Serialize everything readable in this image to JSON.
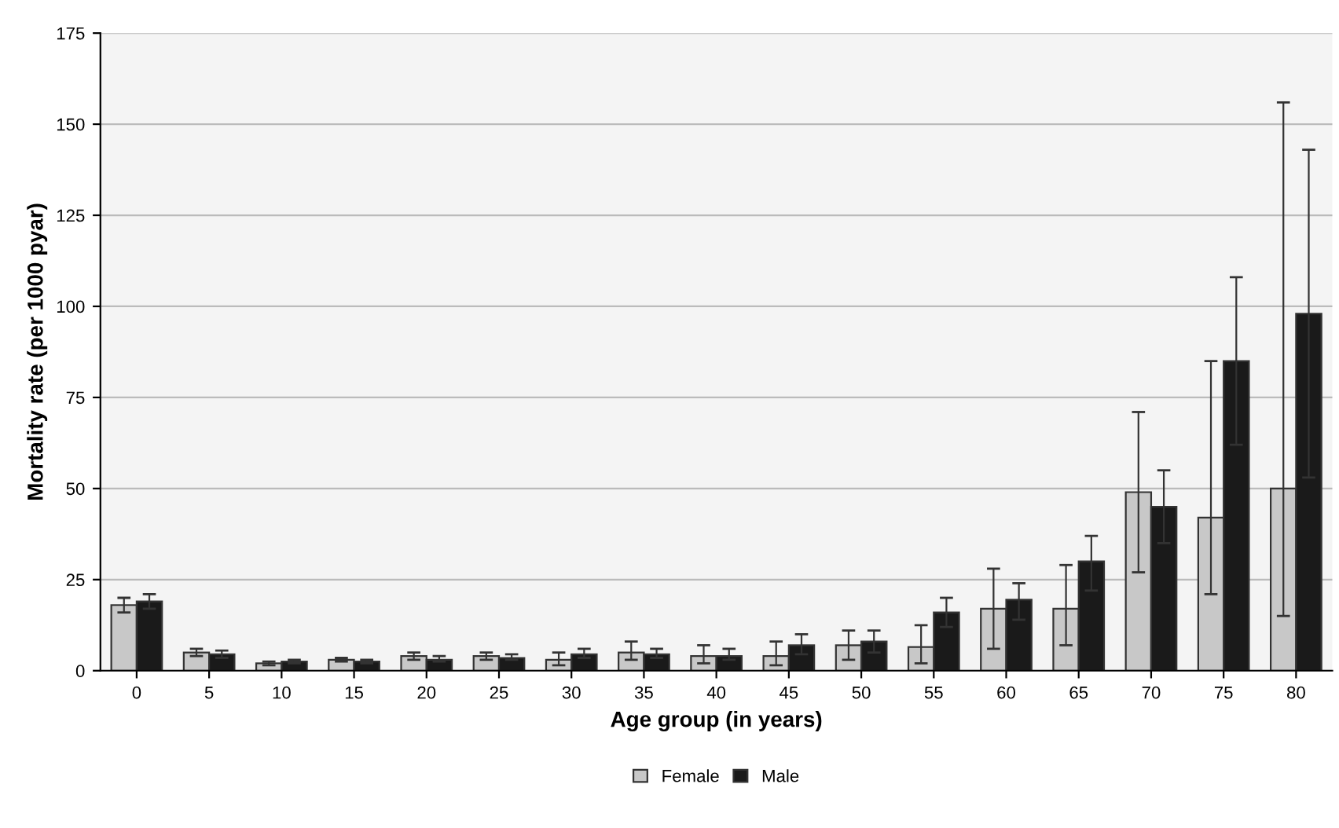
{
  "chart_data": {
    "type": "bar",
    "xlabel": "Age group (in years)",
    "ylabel": "Mortality rate (per 1000 pyar)",
    "categories": [
      "0",
      "5",
      "10",
      "15",
      "20",
      "25",
      "30",
      "35",
      "40",
      "45",
      "50",
      "55",
      "60",
      "65",
      "70",
      "75",
      "80"
    ],
    "series": [
      {
        "name": "Female",
        "color": "#c8c8c8",
        "values": [
          18,
          5,
          2,
          3,
          4,
          4,
          3,
          5,
          4,
          4,
          7,
          6.5,
          17,
          17,
          49,
          42,
          50
        ],
        "errors": [
          [
            16,
            20
          ],
          [
            4,
            6
          ],
          [
            1.5,
            2.5
          ],
          [
            2.5,
            3.5
          ],
          [
            3,
            5
          ],
          [
            3,
            5
          ],
          [
            1.5,
            5
          ],
          [
            3,
            8
          ],
          [
            2,
            7
          ],
          [
            1.5,
            8
          ],
          [
            3,
            11
          ],
          [
            2,
            12.5
          ],
          [
            6,
            28
          ],
          [
            7,
            29
          ],
          [
            27,
            71
          ],
          [
            21,
            85
          ],
          [
            15,
            156
          ]
        ]
      },
      {
        "name": "Male",
        "color": "#1a1a1a",
        "values": [
          19,
          4.5,
          2.5,
          2.5,
          3,
          3.5,
          4.5,
          4.5,
          4,
          7,
          8,
          16,
          19.5,
          30,
          45,
          85,
          98
        ],
        "errors": [
          [
            17,
            21
          ],
          [
            3.5,
            5.5
          ],
          [
            2,
            3
          ],
          [
            2,
            3
          ],
          [
            2.5,
            4
          ],
          [
            3,
            4.5
          ],
          [
            3.5,
            6
          ],
          [
            3.5,
            6
          ],
          [
            3,
            6
          ],
          [
            4.5,
            10
          ],
          [
            5,
            11
          ],
          [
            12,
            20
          ],
          [
            14,
            24
          ],
          [
            22,
            37
          ],
          [
            35,
            55
          ],
          [
            62,
            108
          ],
          [
            53,
            143
          ]
        ]
      }
    ],
    "ylim": [
      0,
      175
    ],
    "yticks": [
      0,
      25,
      50,
      75,
      100,
      125,
      150,
      175
    ],
    "grid": "y",
    "legend": "bottom"
  }
}
